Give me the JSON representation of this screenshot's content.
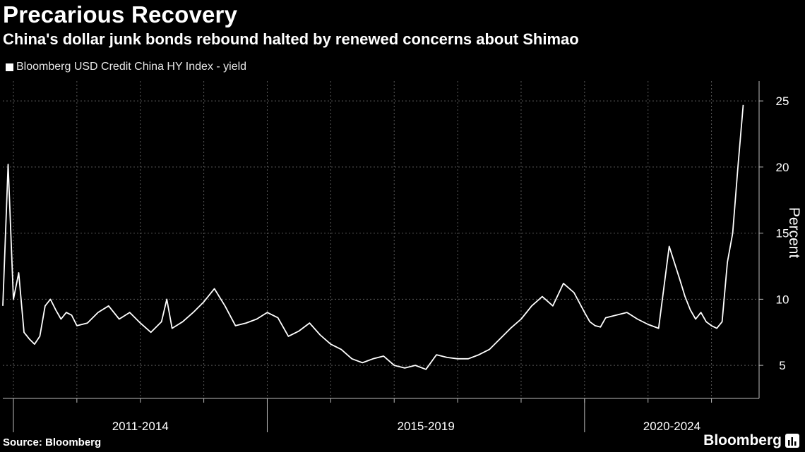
{
  "header": {
    "title": "Precarious Recovery",
    "subtitle": "China's dollar junk bonds rebound halted by renewed concerns about Shimao"
  },
  "legend": {
    "label": "Bloomberg USD Credit China HY Index - yield"
  },
  "footer": {
    "source": "Source: Bloomberg",
    "brand": "Bloomberg"
  },
  "chart_data": {
    "type": "line",
    "title": "Precarious Recovery",
    "subtitle": "China's dollar junk bonds rebound halted by renewed concerns about Shimao",
    "ylabel": "Percent",
    "xlabel": "",
    "ylim": [
      2.5,
      26.5
    ],
    "yticks": [
      5,
      10,
      15,
      20,
      25
    ],
    "x_group_labels": [
      "2011-2014",
      "2015-2019",
      "2020-2024"
    ],
    "grid": true,
    "legend_position": "top-left",
    "colors": {
      "background": "#000000",
      "line": "#ffffff",
      "grid": "#5a5a5a"
    },
    "series": [
      {
        "name": "Bloomberg USD Credit China HY Index - yield",
        "x": [
          "2010-11",
          "2010-12",
          "2011-01",
          "2011-02",
          "2011-03",
          "2011-04",
          "2011-05",
          "2011-06",
          "2011-07",
          "2011-08",
          "2011-09",
          "2011-10",
          "2011-11",
          "2011-12",
          "2012-01",
          "2012-03",
          "2012-05",
          "2012-07",
          "2012-09",
          "2012-11",
          "2013-01",
          "2013-03",
          "2013-05",
          "2013-06",
          "2013-07",
          "2013-09",
          "2013-11",
          "2014-01",
          "2014-03",
          "2014-05",
          "2014-07",
          "2014-09",
          "2014-11",
          "2015-01",
          "2015-03",
          "2015-05",
          "2015-07",
          "2015-09",
          "2015-11",
          "2016-01",
          "2016-03",
          "2016-05",
          "2016-07",
          "2016-09",
          "2016-11",
          "2017-01",
          "2017-03",
          "2017-05",
          "2017-07",
          "2017-09",
          "2017-11",
          "2018-01",
          "2018-03",
          "2018-05",
          "2018-07",
          "2018-09",
          "2018-11",
          "2019-01",
          "2019-03",
          "2019-05",
          "2019-07",
          "2019-09",
          "2019-11",
          "2020-01",
          "2020-02",
          "2020-03",
          "2020-04",
          "2020-05",
          "2020-07",
          "2020-09",
          "2020-11",
          "2021-01",
          "2021-03",
          "2021-05",
          "2021-07",
          "2021-08",
          "2021-09",
          "2021-10",
          "2021-11",
          "2021-12",
          "2022-01",
          "2022-02",
          "2022-03",
          "2022-04",
          "2022-05",
          "2022-06",
          "2022-07"
        ],
        "values": [
          9.5,
          20.2,
          10.0,
          12.0,
          7.5,
          7.0,
          6.6,
          7.2,
          9.5,
          10.0,
          9.2,
          8.5,
          9.0,
          8.8,
          8.0,
          8.2,
          9.0,
          9.5,
          8.5,
          9.0,
          8.2,
          7.5,
          8.3,
          10.0,
          7.8,
          8.3,
          9.0,
          9.8,
          10.8,
          9.5,
          8.0,
          8.2,
          8.5,
          9.0,
          8.6,
          7.2,
          7.6,
          8.2,
          7.3,
          6.6,
          6.2,
          5.5,
          5.2,
          5.5,
          5.7,
          5.0,
          4.8,
          5.0,
          4.7,
          5.8,
          5.6,
          5.5,
          5.5,
          5.8,
          6.2,
          7.0,
          7.8,
          8.5,
          9.5,
          10.2,
          9.5,
          11.2,
          10.5,
          9.0,
          8.3,
          8.0,
          7.9,
          8.6,
          8.8,
          9.0,
          8.5,
          8.1,
          7.8,
          14.0,
          11.5,
          10.2,
          9.2,
          8.5,
          9.0,
          8.3,
          8.0,
          7.8,
          8.3,
          12.8,
          15.0,
          20.0,
          24.7
        ]
      }
    ]
  }
}
